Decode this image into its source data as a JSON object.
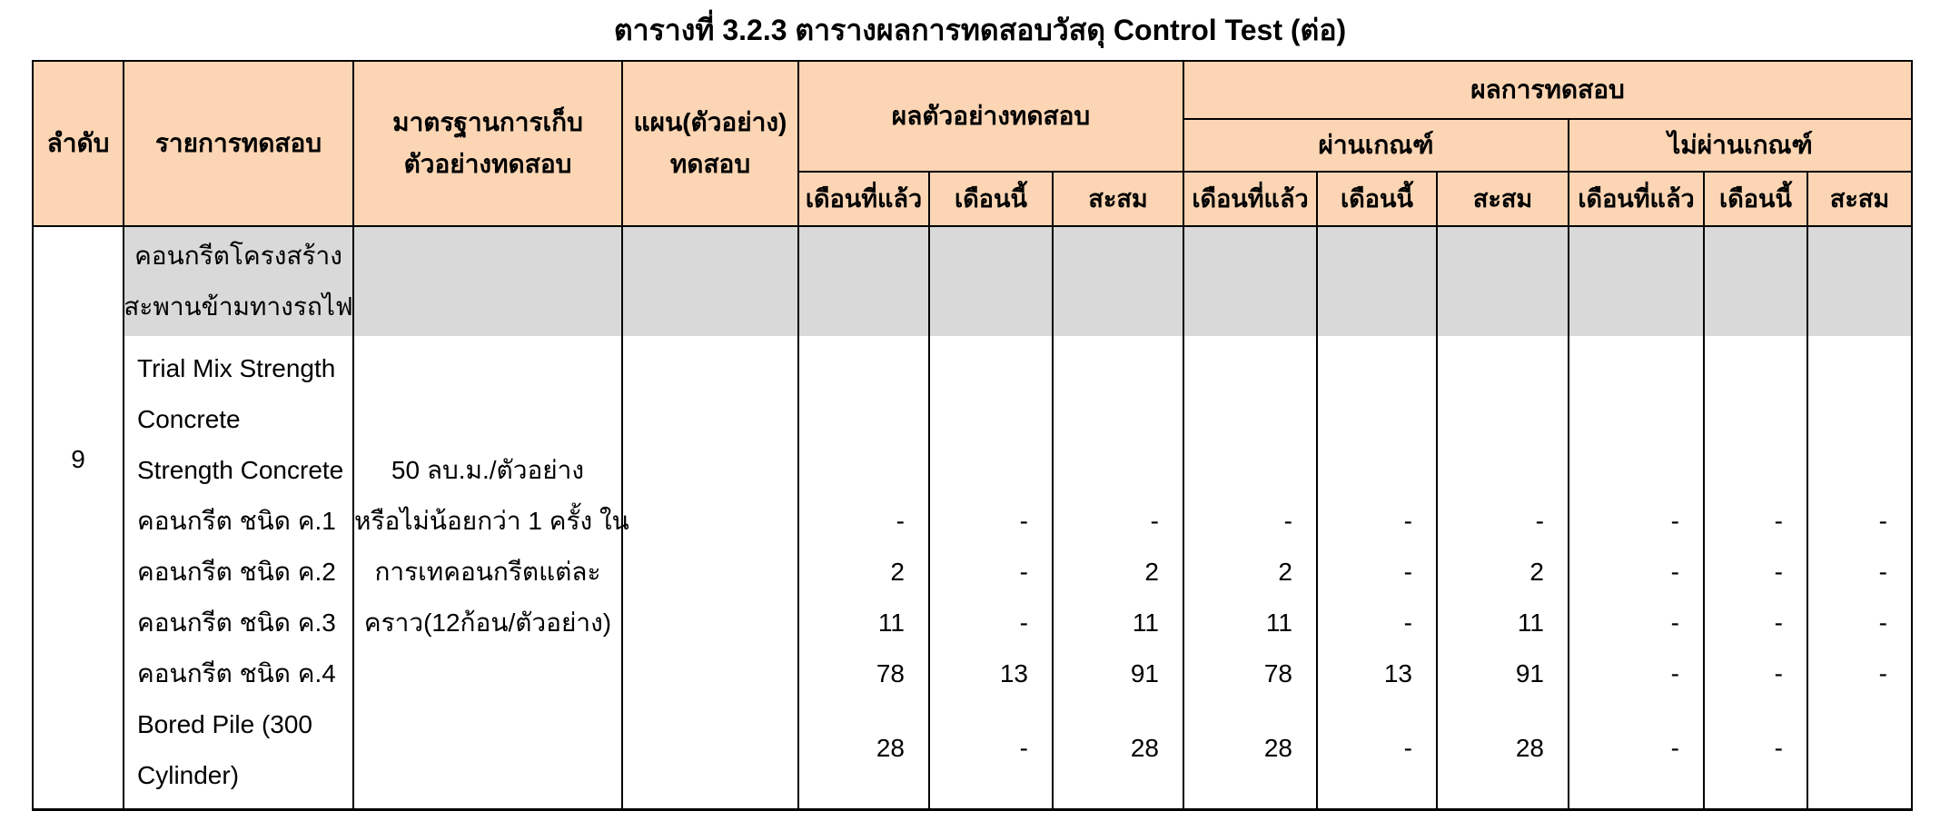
{
  "title": "ตารางที่ 3.2.3 ตารางผลการทดสอบวัสดุ Control Test (ต่อ)",
  "colors": {
    "header_bg": "#FCD5B4",
    "section_bg": "#D9D9D9",
    "border": "#000000",
    "page_bg": "#FFFFFF"
  },
  "headers": {
    "no": "ลำดับ",
    "item": "รายการทดสอบ",
    "standard_l1": "มาตรฐานการเก็บ",
    "standard_l2": "ตัวอย่างทดสอบ",
    "plan_l1": "แผน(ตัวอย่าง)",
    "plan_l2": "ทดสอบ",
    "group_sample": "ผลตัวอย่างทดสอบ",
    "group_result": "ผลการทดสอบ",
    "group_pass": "ผ่านเกณฑ์",
    "group_fail": "ไม่ผ่านเกณฑ์",
    "sub_last_month": "เดือนที่แล้ว",
    "sub_this_month": "เดือนนี้",
    "sub_total": "สะสม"
  },
  "section": {
    "line1": "คอนกรีตโครงสร้าง",
    "line2": "สะพานข้ามทางรถไฟ"
  },
  "body": {
    "row_no": "9",
    "items": [
      "Trial Mix Strength",
      "Concrete",
      "Strength Concrete",
      "คอนกรีต ชนิด ค.1",
      "คอนกรีต ชนิด ค.2",
      "คอนกรีต ชนิด ค.3",
      "คอนกรีต ชนิด ค.4",
      "Bored Pile (300",
      "Cylinder)"
    ],
    "standard_lines": [
      "50 ลบ.ม./ตัวอย่าง",
      "หรือไม่น้อยกว่า 1 ครั้ง ใน",
      "การเทคอนกรีตแต่ละ",
      "คราว(12ก้อน/ตัวอย่าง)"
    ],
    "plan": "",
    "sample_last": [
      "-",
      "2",
      "11",
      "78",
      "28"
    ],
    "sample_this": [
      "-",
      "-",
      "-",
      "13",
      "-"
    ],
    "sample_total": [
      "-",
      "2",
      "11",
      "91",
      "28"
    ],
    "pass_last": [
      "-",
      "2",
      "11",
      "78",
      "28"
    ],
    "pass_this": [
      "-",
      "-",
      "-",
      "13",
      "-"
    ],
    "pass_total": [
      "-",
      "2",
      "11",
      "91",
      "28"
    ],
    "fail_last": [
      "-",
      "-",
      "-",
      "-",
      "-"
    ],
    "fail_this": [
      "-",
      "-",
      "-",
      "-",
      "-"
    ],
    "fail_total": [
      "-",
      "-",
      "-",
      "-",
      ""
    ]
  }
}
